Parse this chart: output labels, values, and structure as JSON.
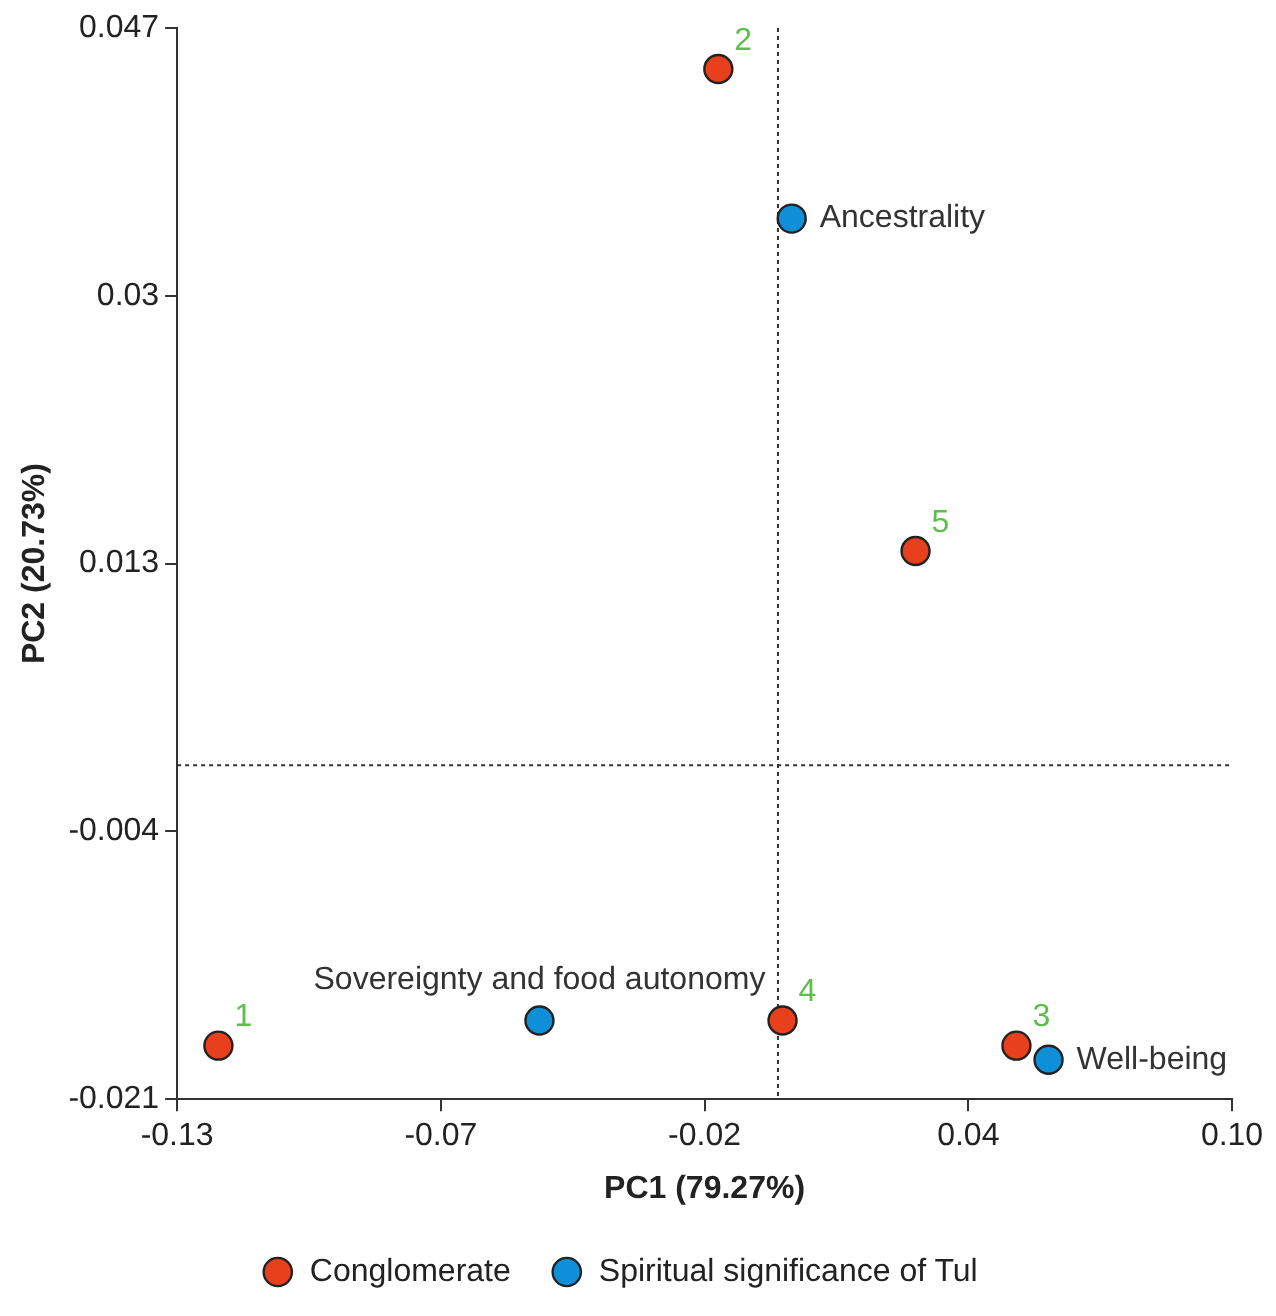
{
  "chart_data": {
    "type": "scatter",
    "xlabel": "PC1 (79.27%)",
    "ylabel": "PC2 (20.73%)",
    "xlim": [
      -0.13,
      0.1
    ],
    "xticks": [
      -0.13,
      {
        "value": -0.0725,
        "label": "-0.07"
      },
      {
        "value": -0.015,
        "label": "-0.02"
      },
      {
        "value": 0.0425,
        "label": "0.04"
      },
      {
        "value": 0.1,
        "label": "0.10"
      }
    ],
    "ylim": [
      -0.021,
      0.047
    ],
    "yticks": [
      -0.021,
      -0.004,
      0.013,
      0.03,
      0.047
    ],
    "grid": false,
    "legend": "bottom",
    "marker": "circle",
    "ref_lines": [
      {
        "axis": "x",
        "value": 0.001,
        "line_style": "dotted"
      },
      {
        "axis": "y",
        "value": 0.0002,
        "line_style": "dotted"
      }
    ],
    "series": [
      {
        "name": "Conglomerate",
        "color": "#e8401c",
        "x": [
          -0.121,
          -0.012,
          0.053,
          0.002,
          0.031
        ],
        "values": [
          -0.0176,
          0.0444,
          -0.0176,
          -0.016,
          0.0138
        ]
      },
      {
        "name": "Spiritual significance of Tul",
        "color": "#0f8fd8",
        "x": [
          0.004,
          -0.051,
          0.06
        ],
        "values": [
          0.0349,
          -0.016,
          -0.0185
        ]
      }
    ],
    "annotations": [
      {
        "text": "1",
        "x": -0.121,
        "y": -0.0176
      },
      {
        "text": "2",
        "x": -0.012,
        "y": 0.0444
      },
      {
        "text": "3",
        "x": 0.053,
        "y": -0.0176
      },
      {
        "text": "4",
        "x": 0.002,
        "y": -0.016
      },
      {
        "text": "5",
        "x": 0.031,
        "y": 0.0138
      },
      {
        "text": "Ancestrality",
        "x": 0.004,
        "y": 0.0349
      },
      {
        "text": "Sovereignty and food autonomy",
        "x": -0.051,
        "y": -0.016
      },
      {
        "text": "Well-being",
        "x": 0.06,
        "y": -0.0185
      }
    ]
  }
}
